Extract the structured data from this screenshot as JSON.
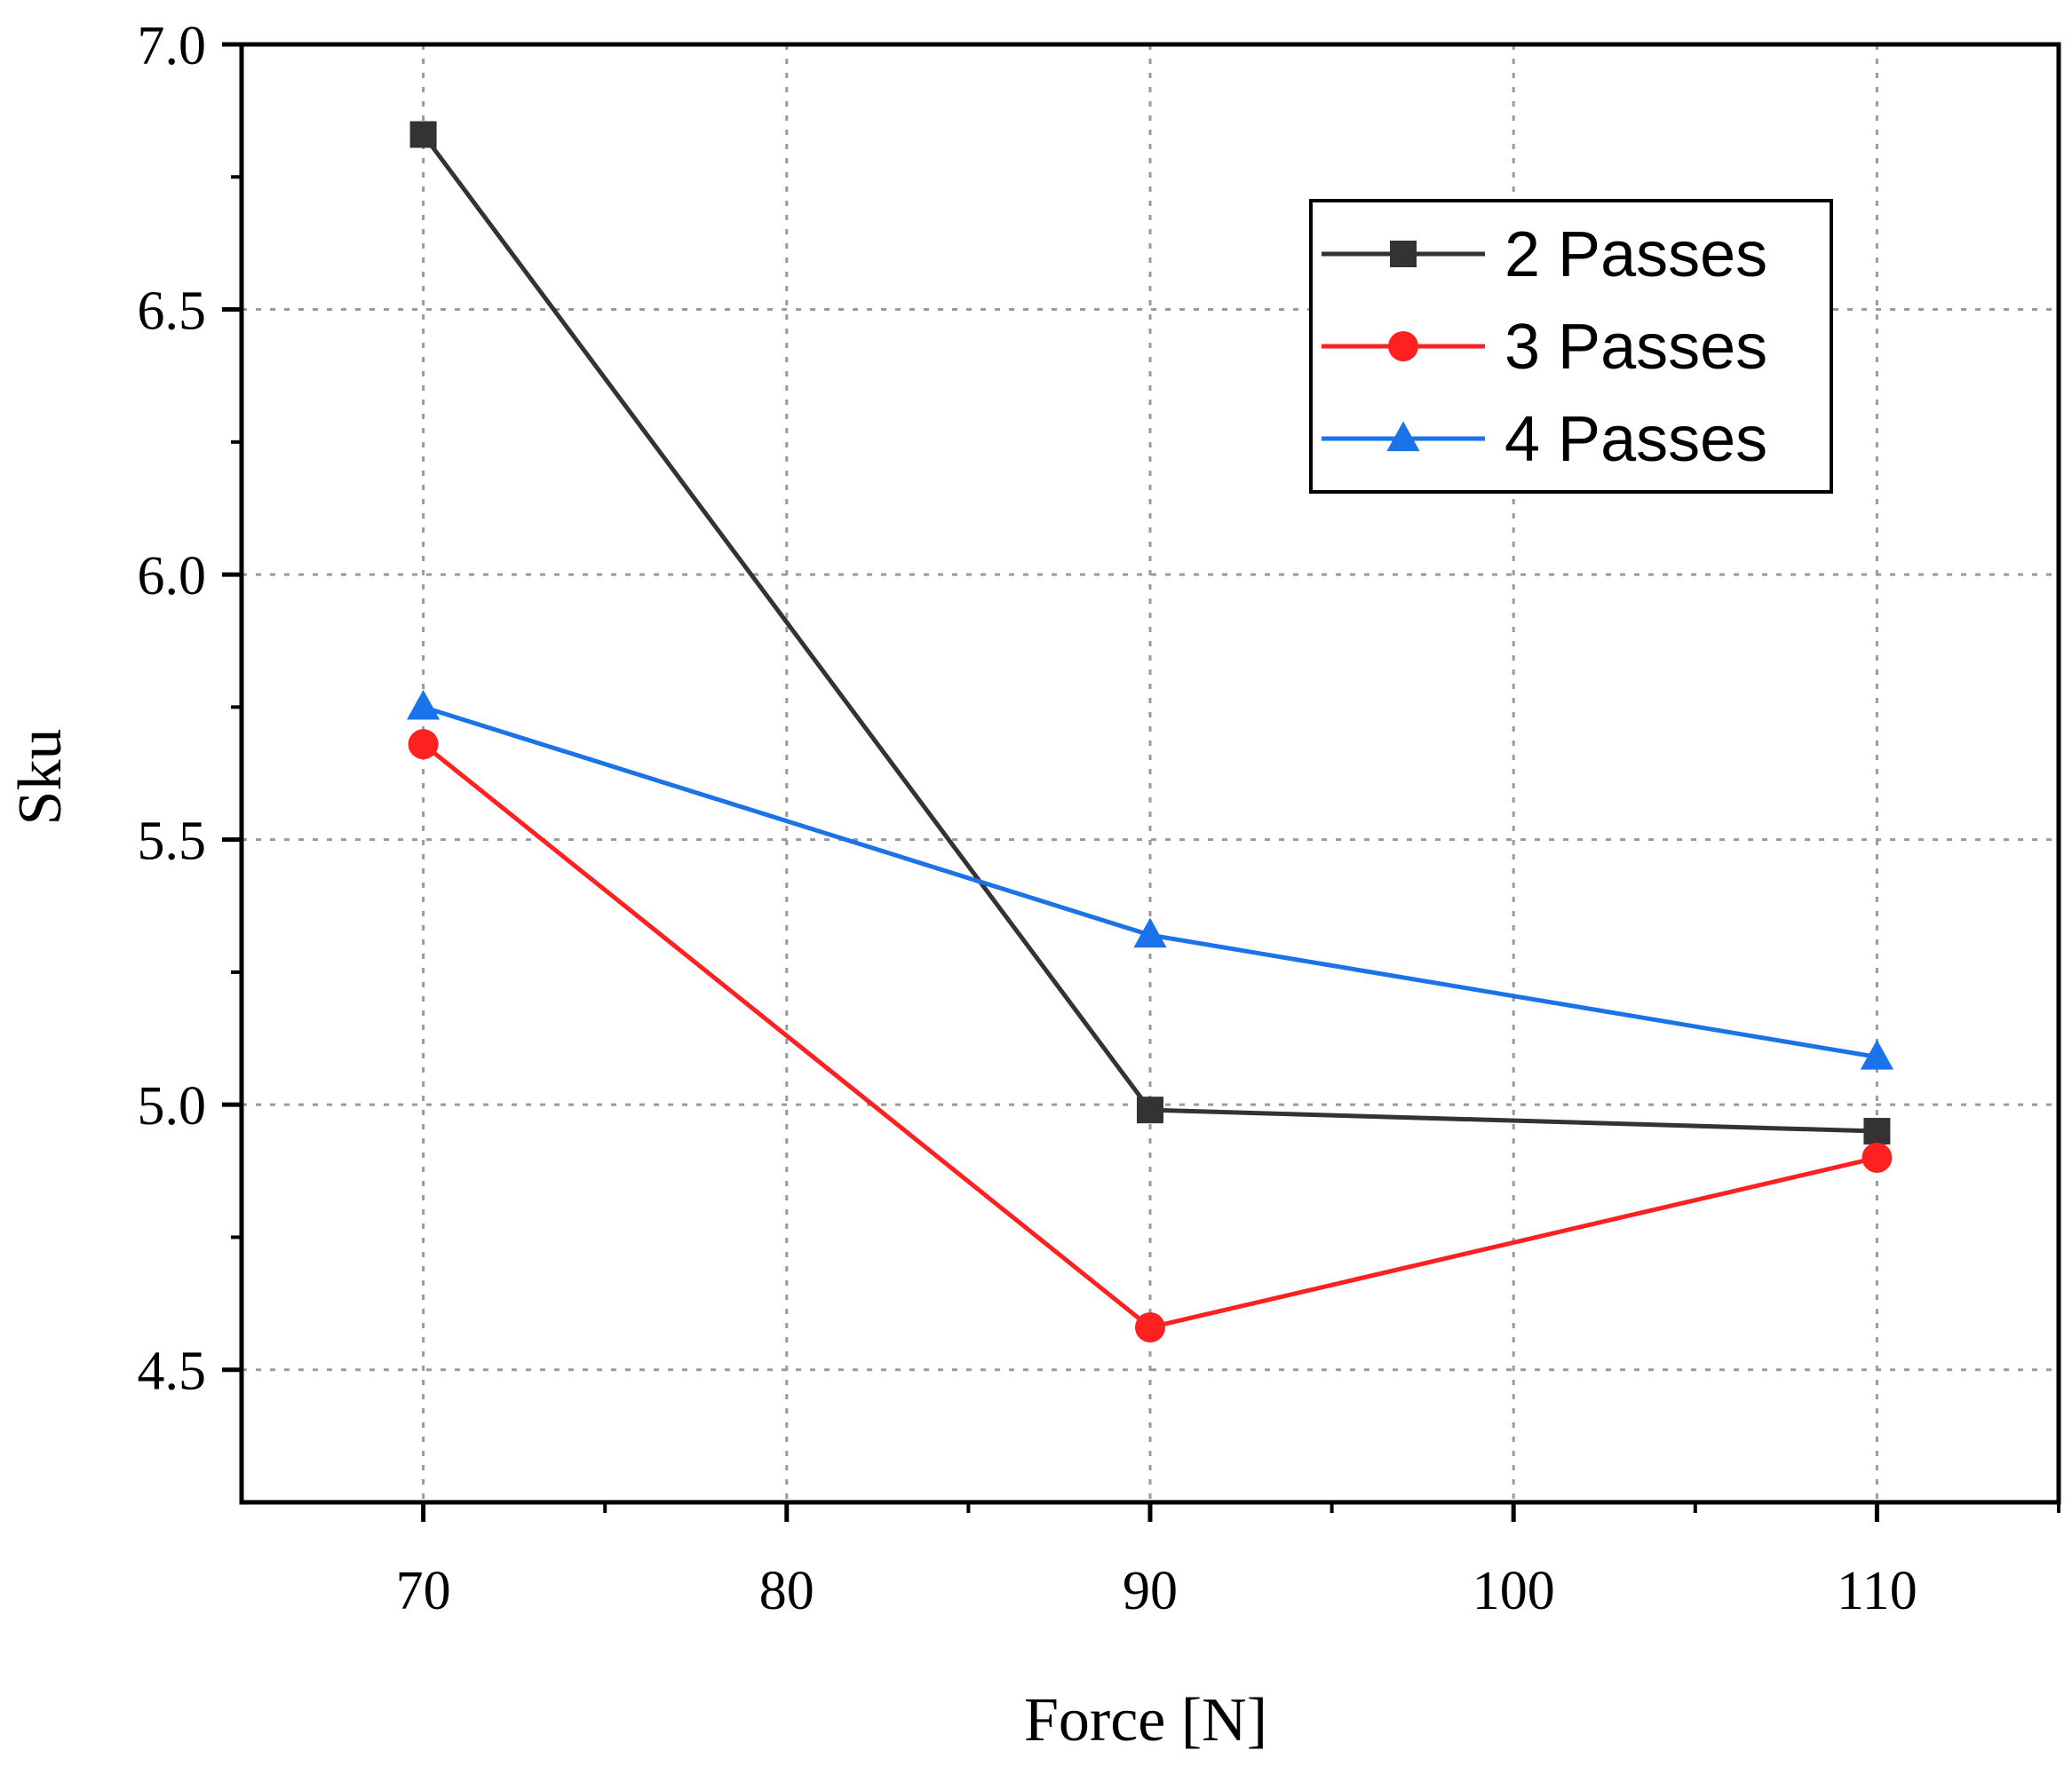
{
  "chart_data": {
    "type": "line",
    "title": "",
    "xlabel": "Force [N]",
    "ylabel": "Sku",
    "x": [
      70,
      90,
      110
    ],
    "xlim": [
      65,
      115
    ],
    "ylim": [
      4.25,
      7.0
    ],
    "xticks": [
      70,
      80,
      90,
      100,
      110
    ],
    "xtick_labels": [
      "70",
      "80",
      "90",
      "100",
      "110"
    ],
    "yticks": [
      4.5,
      5.0,
      5.5,
      6.0,
      6.5,
      7.0
    ],
    "ytick_labels": [
      "4.5",
      "5.0",
      "5.5",
      "6.0",
      "6.5",
      "7.0"
    ],
    "grid": true,
    "legend_position": "top-right",
    "series": [
      {
        "name": "2 Passes",
        "values": [
          6.83,
          4.99,
          4.95
        ],
        "color": "#333333",
        "marker": "square"
      },
      {
        "name": "3 Passes",
        "values": [
          5.68,
          4.58,
          4.9
        ],
        "color": "#ff2020",
        "marker": "circle"
      },
      {
        "name": "4 Passes",
        "values": [
          5.75,
          5.32,
          5.09
        ],
        "color": "#1a73e8",
        "marker": "triangle"
      }
    ]
  }
}
